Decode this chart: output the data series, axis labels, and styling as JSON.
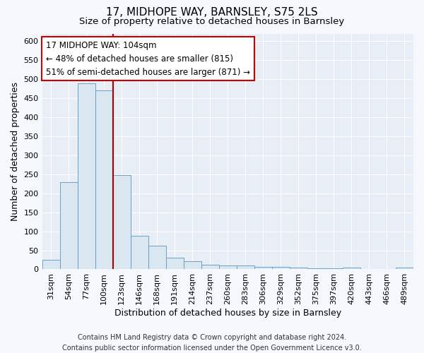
{
  "title": "17, MIDHOPE WAY, BARNSLEY, S75 2LS",
  "subtitle": "Size of property relative to detached houses in Barnsley",
  "xlabel": "Distribution of detached houses by size in Barnsley",
  "ylabel": "Number of detached properties",
  "categories": [
    "31sqm",
    "54sqm",
    "77sqm",
    "100sqm",
    "123sqm",
    "146sqm",
    "168sqm",
    "191sqm",
    "214sqm",
    "237sqm",
    "260sqm",
    "283sqm",
    "306sqm",
    "329sqm",
    "352sqm",
    "375sqm",
    "397sqm",
    "420sqm",
    "443sqm",
    "466sqm",
    "489sqm"
  ],
  "values": [
    25,
    230,
    490,
    470,
    248,
    88,
    63,
    30,
    22,
    12,
    10,
    10,
    7,
    7,
    5,
    3,
    3,
    5,
    0,
    0,
    5
  ],
  "bar_color": "#dae6f0",
  "bar_edge_color": "#6aa0c8",
  "vline_color": "#aa0000",
  "annotation_title": "17 MIDHOPE WAY: 104sqm",
  "annotation_line1": "← 48% of detached houses are smaller (815)",
  "annotation_line2": "51% of semi-detached houses are larger (871) →",
  "annotation_box_color": "#ffffff",
  "annotation_box_edge_color": "#cc0000",
  "ylim": [
    0,
    620
  ],
  "yticks": [
    0,
    50,
    100,
    150,
    200,
    250,
    300,
    350,
    400,
    450,
    500,
    550,
    600
  ],
  "footer1": "Contains HM Land Registry data © Crown copyright and database right 2024.",
  "footer2": "Contains public sector information licensed under the Open Government Licence v3.0.",
  "plot_bg_color": "#e8eef5",
  "fig_bg_color": "#f5f8fc",
  "grid_color": "#ffffff",
  "title_fontsize": 11,
  "subtitle_fontsize": 9.5,
  "axis_label_fontsize": 9,
  "tick_fontsize": 8,
  "annotation_fontsize": 8.5,
  "footer_fontsize": 7,
  "vline_bar_index": 3
}
